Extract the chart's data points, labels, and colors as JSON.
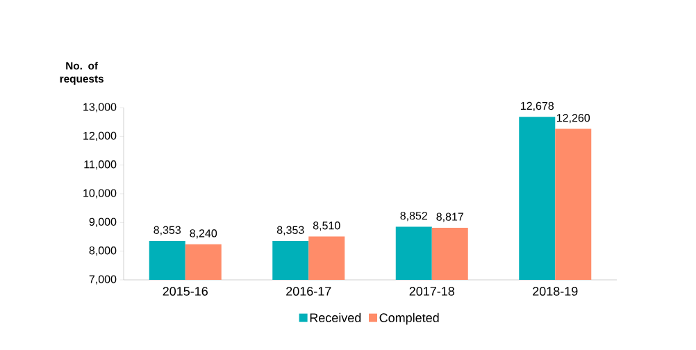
{
  "chart_data": {
    "type": "bar",
    "ylabel": "No. of requests",
    "categories": [
      "2015-16",
      "2016-17",
      "2017-18",
      "2018-19"
    ],
    "series": [
      {
        "name": "Received",
        "color": "#00b0b9",
        "values": [
          8353,
          8353,
          8852,
          12678
        ],
        "value_labels": [
          "8,353",
          "8,353",
          "8,852",
          "12,678"
        ]
      },
      {
        "name": "Completed",
        "color": "#ff8c69",
        "values": [
          8240,
          8510,
          8817,
          12260
        ],
        "value_labels": [
          "8,240",
          "8,510",
          "8,817",
          "12,260"
        ]
      }
    ],
    "ylim": [
      7000,
      13000
    ],
    "yticks": [
      {
        "value": 7000,
        "label": "7,000"
      },
      {
        "value": 8000,
        "label": "8,000"
      },
      {
        "value": 9000,
        "label": "9,000"
      },
      {
        "value": 10000,
        "label": "10,000"
      },
      {
        "value": 11000,
        "label": "11,000"
      },
      {
        "value": 12000,
        "label": "12,000"
      },
      {
        "value": 13000,
        "label": "13,000"
      }
    ],
    "legend": "bottom",
    "grid": false
  }
}
